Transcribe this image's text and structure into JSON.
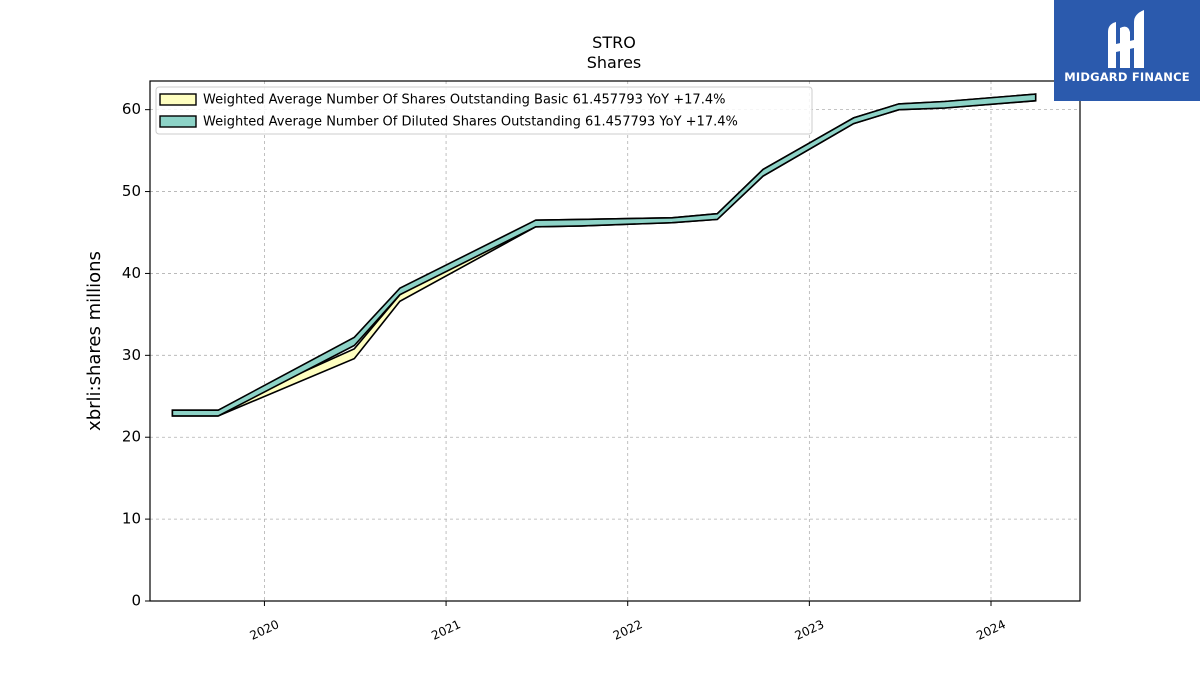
{
  "logo": {
    "brand_text": "MIDGARD FINANCE"
  },
  "chart_data": {
    "type": "area",
    "title": "STRO",
    "subtitle": "Shares",
    "xlabel": "",
    "ylabel": "xbrli:shares millions",
    "ylim": [
      0,
      63.5
    ],
    "xlim": [
      2019.37,
      2024.49
    ],
    "yticks": [
      0,
      10,
      20,
      30,
      40,
      50,
      60
    ],
    "xticks": [
      2020,
      2021,
      2022,
      2023,
      2024
    ],
    "xtick_labels": [
      "2020",
      "2021",
      "2022",
      "2023",
      "2024"
    ],
    "grid": true,
    "legend_position": "upper-left",
    "series": [
      {
        "name": "Weighted Average Number Of Shares Outstanding Basic  61.457793 YoY +17.4%",
        "color": "#ffffc0",
        "x": [
          "2019-06-30",
          "2019-09-30",
          "2020-06-30",
          "2020-09-30",
          "2021-06-30",
          "2021-09-30",
          "2022-03-31",
          "2022-06-30",
          "2022-09-30",
          "2023-03-31",
          "2023-06-30",
          "2023-09-30",
          "2024-03-31"
        ],
        "low": [
          22.6,
          22.6,
          29.6,
          36.6,
          45.7,
          45.8,
          46.2,
          46.6,
          51.9,
          58.3,
          60.0,
          60.2,
          61.1
        ],
        "high": [
          23.3,
          23.3,
          30.8,
          37.4,
          46.5,
          46.6,
          46.8,
          47.3,
          52.7,
          59.0,
          60.7,
          61.0,
          61.9
        ]
      },
      {
        "name": "Weighted Average Number Of Diluted Shares Outstanding  61.457793 YoY +17.4%",
        "color": "#8dd3c7",
        "x": [
          "2019-06-30",
          "2019-09-30",
          "2020-06-30",
          "2020-09-30",
          "2021-06-30",
          "2021-09-30",
          "2022-03-31",
          "2022-06-30",
          "2022-09-30",
          "2023-03-31",
          "2023-06-30",
          "2023-09-30",
          "2024-03-31"
        ],
        "low": [
          22.6,
          22.6,
          31.2,
          37.4,
          45.7,
          45.8,
          46.2,
          46.6,
          51.9,
          58.3,
          60.0,
          60.2,
          61.1
        ],
        "high": [
          23.3,
          23.3,
          32.2,
          38.2,
          46.5,
          46.6,
          46.8,
          47.3,
          52.7,
          59.0,
          60.7,
          61.0,
          61.9
        ]
      }
    ]
  }
}
